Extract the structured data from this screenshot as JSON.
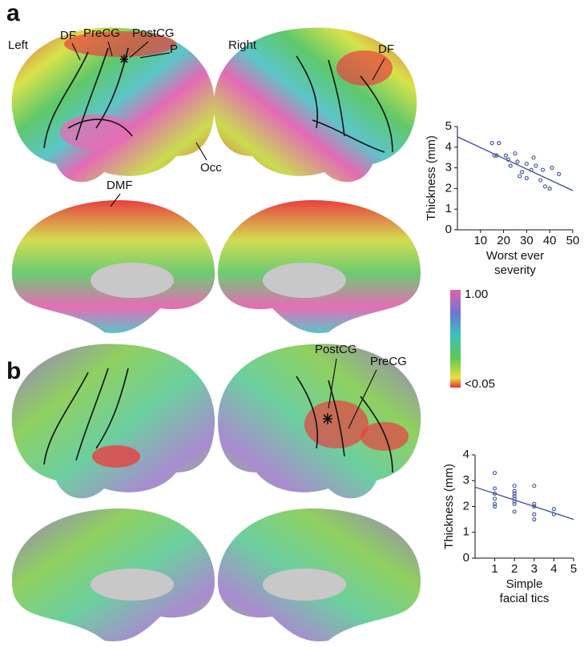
{
  "panel_labels": [
    "a",
    "b"
  ],
  "hemisphere_labels": [
    "Left",
    "Right"
  ],
  "annotations": [
    "DF",
    "PreCG",
    "PostCG",
    "P",
    "Occ",
    "DF",
    "DMF",
    "PostCG",
    "PreCG"
  ],
  "colorbar": {
    "max_label": "1.00",
    "min_label": "<0.05"
  },
  "chart_data": [
    {
      "type": "scatter",
      "ylabel": "Thickness (mm)",
      "xlabel": [
        "Worst ever",
        "severity"
      ],
      "x": [
        15,
        18,
        16,
        17,
        21,
        22,
        23,
        25,
        26,
        28,
        30,
        27,
        30,
        32,
        33,
        34,
        37,
        36,
        38,
        40,
        41,
        44
      ],
      "values": [
        4.2,
        4.2,
        3.6,
        3.6,
        3.6,
        3.4,
        3.1,
        3.7,
        3.3,
        2.8,
        3.2,
        2.6,
        2.5,
        2.9,
        3.5,
        3.1,
        2.9,
        2.4,
        2.1,
        2.0,
        3.0,
        2.7
      ],
      "fit": {
        "x": [
          0,
          50
        ],
        "values": [
          4.5,
          1.9
        ]
      },
      "color": "#4a5a9c",
      "line_color": "#3a4a8c",
      "xlim": [
        0,
        50
      ],
      "xticks": [
        10,
        20,
        30,
        40,
        50
      ],
      "ylim": [
        0,
        5
      ],
      "yticks": [
        0,
        1,
        2,
        3,
        4,
        5
      ]
    },
    {
      "type": "scatter",
      "ylabel": "Thickness (mm)",
      "xlabel": [
        "Simple",
        "facial tics"
      ],
      "x": [
        1,
        1,
        1,
        1,
        1,
        1,
        2,
        2,
        2,
        2,
        2,
        2,
        2,
        2,
        3,
        3,
        3,
        3,
        3,
        4,
        4
      ],
      "values": [
        3.3,
        2.7,
        2.5,
        2.3,
        2.1,
        2.0,
        2.8,
        2.6,
        2.5,
        2.4,
        2.3,
        2.2,
        2.1,
        1.8,
        2.8,
        2.1,
        2.0,
        1.7,
        1.5,
        1.9,
        1.7
      ],
      "fit": {
        "x": [
          0,
          5
        ],
        "values": [
          2.75,
          1.5
        ]
      },
      "color": "#4a5a9c",
      "line_color": "#3a4a8c",
      "xlim": [
        0,
        5
      ],
      "xticks": [
        1,
        2,
        3,
        4,
        5
      ],
      "ylim": [
        0,
        4
      ],
      "yticks": [
        0,
        1,
        2,
        3,
        4
      ]
    }
  ]
}
